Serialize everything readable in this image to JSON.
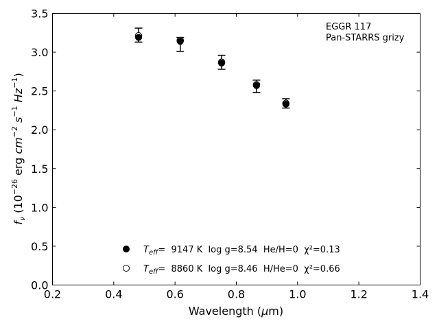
{
  "chart_data": {
    "type": "scatter",
    "xlabel": "Wavelength (μm)",
    "ylabel": "fν (10⁻²⁶ erg cm⁻² s⁻¹ Hz⁻¹)",
    "xlim": [
      0.2,
      1.4
    ],
    "ylim": [
      0.0,
      3.5
    ],
    "x_ticks": [
      "0.2",
      "0.4",
      "0.6",
      "0.8",
      "1.0",
      "1.2",
      "1.4"
    ],
    "y_ticks": [
      "0.0",
      "0.5",
      "1.0",
      "1.5",
      "2.0",
      "2.5",
      "3.0",
      "3.5"
    ],
    "grid": false,
    "legend_placement": "bottom-center",
    "annotation": [
      "EGGR 117",
      "Pan-STARRS grizy"
    ],
    "observed": {
      "x": [
        0.481,
        0.617,
        0.752,
        0.866,
        0.962
      ],
      "y": [
        3.22,
        3.1,
        2.87,
        2.56,
        2.34
      ],
      "err": [
        0.09,
        0.09,
        0.09,
        0.08,
        0.06
      ]
    },
    "series": [
      {
        "name": "Teff= 9147 K log g=8.54 He/H=0 χ²=0.13",
        "name_parts": {
          "teff": "9147 K",
          "rest": "log g=8.54  He/H=0",
          "chi": "χ²=0.13"
        },
        "marker": "filled-circle",
        "x": [
          0.481,
          0.617,
          0.752,
          0.866,
          0.962
        ],
        "y": [
          3.19,
          3.14,
          2.86,
          2.57,
          2.33
        ]
      },
      {
        "name": "Teff= 8860 K log g=8.46 H/He=0 χ²=0.66",
        "name_parts": {
          "teff": "8860 K",
          "rest": "log g=8.46  H/He=0",
          "chi": "χ²=0.66"
        },
        "marker": "open-circle",
        "x": [
          0.481,
          0.617,
          0.752,
          0.866,
          0.962
        ],
        "y": [
          3.21,
          3.15,
          2.87,
          2.58,
          2.34
        ]
      }
    ]
  }
}
